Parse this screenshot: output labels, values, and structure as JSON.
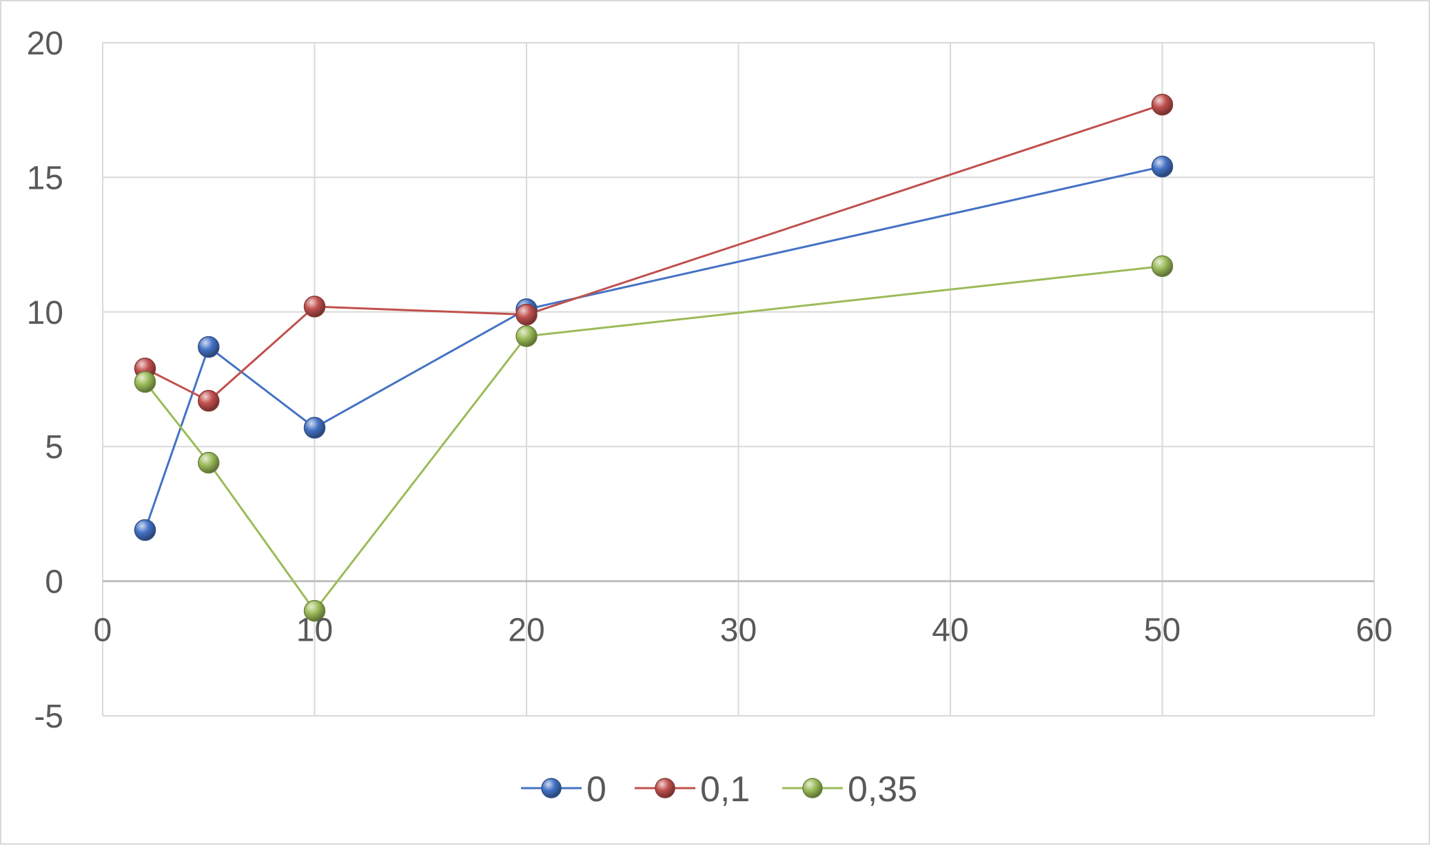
{
  "chart_data": {
    "type": "scatter",
    "xlim": [
      0,
      60
    ],
    "ylim": [
      -5,
      20
    ],
    "x_ticks": [
      0,
      10,
      20,
      30,
      40,
      50,
      60
    ],
    "y_ticks": [
      -5,
      0,
      5,
      10,
      15,
      20
    ],
    "x_tick_labels": [
      "0",
      "10",
      "20",
      "30",
      "40",
      "50",
      "60"
    ],
    "y_tick_labels": [
      "-5",
      "0",
      "5",
      "10",
      "15",
      "20"
    ],
    "grid": true,
    "legend_position": "bottom",
    "series": [
      {
        "name": "0",
        "color": "#4472c4",
        "x": [
          2,
          5,
          10,
          20,
          50
        ],
        "y": [
          1.9,
          8.7,
          5.7,
          10.1,
          15.4
        ]
      },
      {
        "name": "0,1",
        "color": "#c0504d",
        "x": [
          2,
          5,
          10,
          20,
          50
        ],
        "y": [
          7.9,
          6.7,
          10.2,
          9.9,
          17.7
        ]
      },
      {
        "name": "0,35",
        "color": "#9bbb59",
        "x": [
          2,
          5,
          10,
          20,
          50
        ],
        "y": [
          7.4,
          4.4,
          -1.1,
          9.1,
          11.7
        ]
      }
    ]
  }
}
